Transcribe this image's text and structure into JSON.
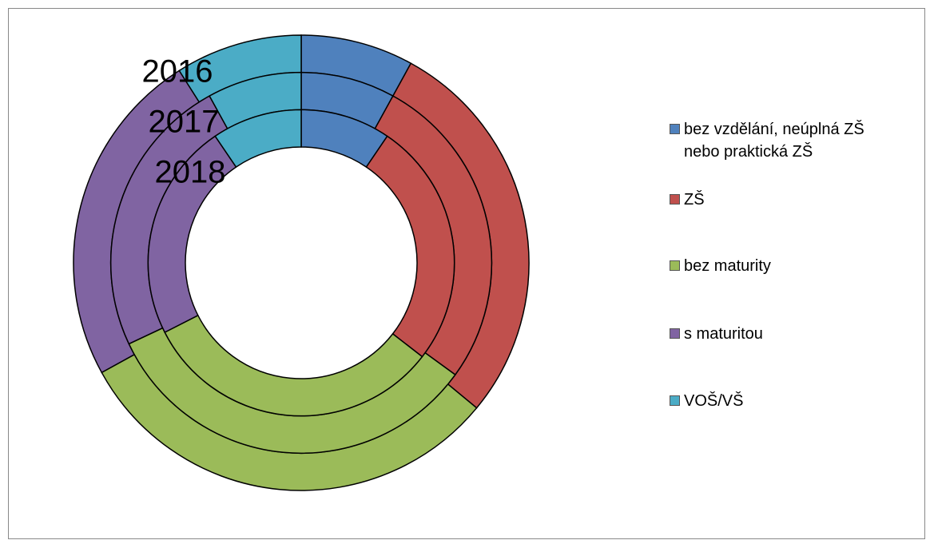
{
  "chart_data": {
    "type": "doughnut",
    "categories": [
      "bez vzdělání, neúplná ZŠ nebo praktická ZŠ",
      "ZŠ",
      "bez maturity",
      "s maturitou",
      "VOŠ/VŠ"
    ],
    "colors": [
      "#4f81bd",
      "#c0504d",
      "#9bbb59",
      "#8064a2",
      "#4bacc6"
    ],
    "series": [
      {
        "name": "2016",
        "values": [
          8,
          28,
          31,
          24,
          9
        ]
      },
      {
        "name": "2017",
        "values": [
          8,
          27,
          33,
          24,
          8
        ]
      },
      {
        "name": "2018",
        "values": [
          9.5,
          26,
          32,
          23,
          9.5
        ]
      }
    ],
    "legend": "right"
  }
}
